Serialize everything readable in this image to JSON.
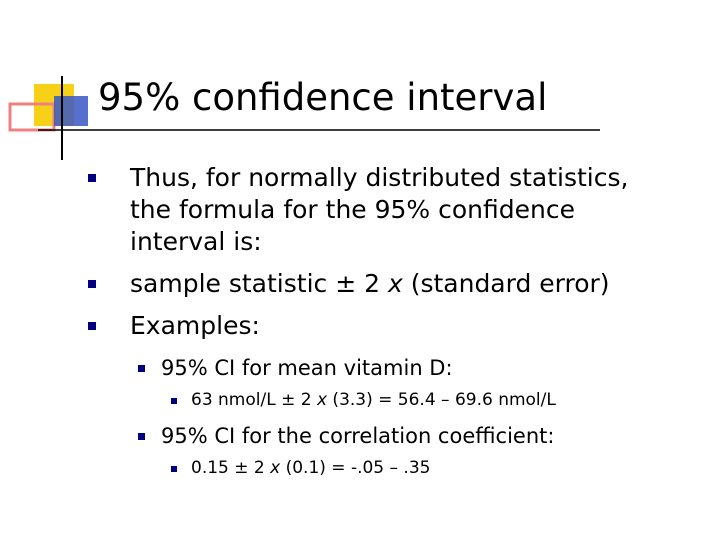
{
  "title": "95% confidence interval",
  "bullets": [
    {
      "level": 1,
      "parts": [
        {
          "text": "Thus, for normally distributed statistics, the formula for the 95% confidence interval is:"
        }
      ]
    },
    {
      "level": 1,
      "parts": [
        {
          "text": "sample statistic ± 2 "
        },
        {
          "text": "x",
          "italic": true
        },
        {
          "text": " (standard error)"
        }
      ]
    },
    {
      "level": 1,
      "parts": [
        {
          "text": "Examples:"
        }
      ]
    },
    {
      "level": 2,
      "parts": [
        {
          "text": "95% CI for mean vitamin D:"
        }
      ]
    },
    {
      "level": 3,
      "parts": [
        {
          "text": "63 nmol/L ± 2 "
        },
        {
          "text": "x",
          "italic": true
        },
        {
          "text": " (3.3) = 56.4 – 69.6 nmol/L"
        }
      ]
    },
    {
      "level": 2,
      "parts": [
        {
          "text": "95% CI for the correlation coefficient:"
        }
      ]
    },
    {
      "level": 3,
      "parts": [
        {
          "text": "0.15 ± 2 "
        },
        {
          "text": "x",
          "italic": true
        },
        {
          "text": " (0.1) = -.05 – .35"
        }
      ]
    }
  ]
}
